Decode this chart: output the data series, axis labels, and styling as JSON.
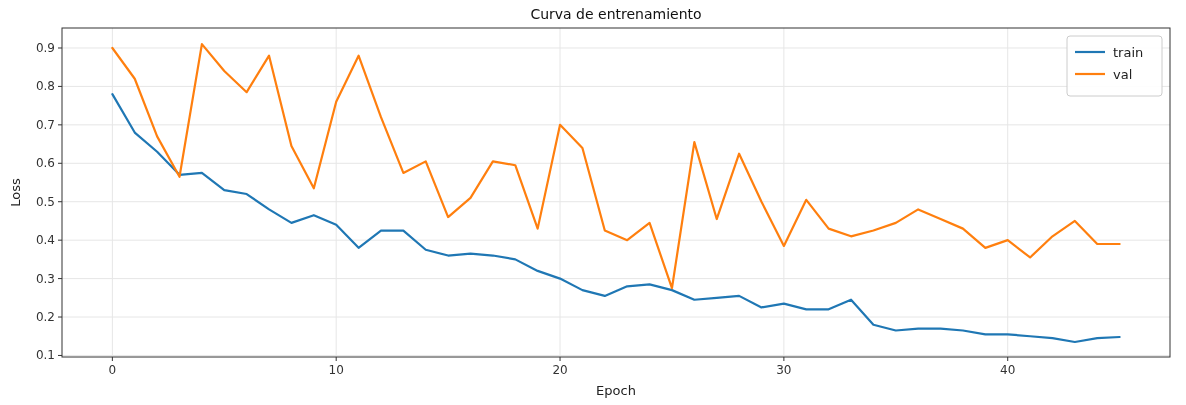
{
  "chart_data": {
    "type": "line",
    "title": "Curva de entrenamiento",
    "xlabel": "Epoch",
    "ylabel": "Loss",
    "x": [
      0,
      1,
      2,
      3,
      4,
      5,
      6,
      7,
      8,
      9,
      10,
      11,
      12,
      13,
      14,
      15,
      16,
      17,
      18,
      19,
      20,
      21,
      22,
      23,
      24,
      25,
      26,
      27,
      28,
      29,
      30,
      31,
      32,
      33,
      34,
      35,
      36,
      37,
      38,
      39,
      40,
      41,
      42,
      43,
      44,
      45
    ],
    "series": [
      {
        "name": "train",
        "color": "#1f77b4",
        "values": [
          0.78,
          0.68,
          0.63,
          0.57,
          0.575,
          0.53,
          0.52,
          0.48,
          0.445,
          0.465,
          0.44,
          0.38,
          0.425,
          0.425,
          0.375,
          0.36,
          0.365,
          0.36,
          0.35,
          0.32,
          0.3,
          0.27,
          0.255,
          0.28,
          0.285,
          0.27,
          0.245,
          0.25,
          0.255,
          0.225,
          0.235,
          0.22,
          0.22,
          0.245,
          0.18,
          0.165,
          0.17,
          0.17,
          0.165,
          0.155,
          0.155,
          0.15,
          0.145,
          0.135,
          0.145,
          0.148
        ]
      },
      {
        "name": "val",
        "color": "#ff7f0e",
        "values": [
          0.9,
          0.82,
          0.67,
          0.565,
          0.91,
          0.84,
          0.785,
          0.88,
          0.645,
          0.535,
          0.76,
          0.88,
          0.72,
          0.575,
          0.605,
          0.46,
          0.51,
          0.605,
          0.595,
          0.43,
          0.7,
          0.64,
          0.425,
          0.4,
          0.445,
          0.275,
          0.655,
          0.455,
          0.625,
          0.5,
          0.385,
          0.505,
          0.43,
          0.41,
          0.425,
          0.445,
          0.48,
          0.455,
          0.43,
          0.38,
          0.4,
          0.355,
          0.41,
          0.45,
          0.39,
          0.39
        ]
      }
    ],
    "xlim": [
      -2.25,
      47.25
    ],
    "ylim": [
      0.096,
      0.952
    ],
    "xticks": [
      0,
      10,
      20,
      30,
      40
    ],
    "yticks": [
      0.1,
      0.2,
      0.3,
      0.4,
      0.5,
      0.6,
      0.7,
      0.8,
      0.9
    ],
    "grid": true,
    "legend": "top right"
  }
}
